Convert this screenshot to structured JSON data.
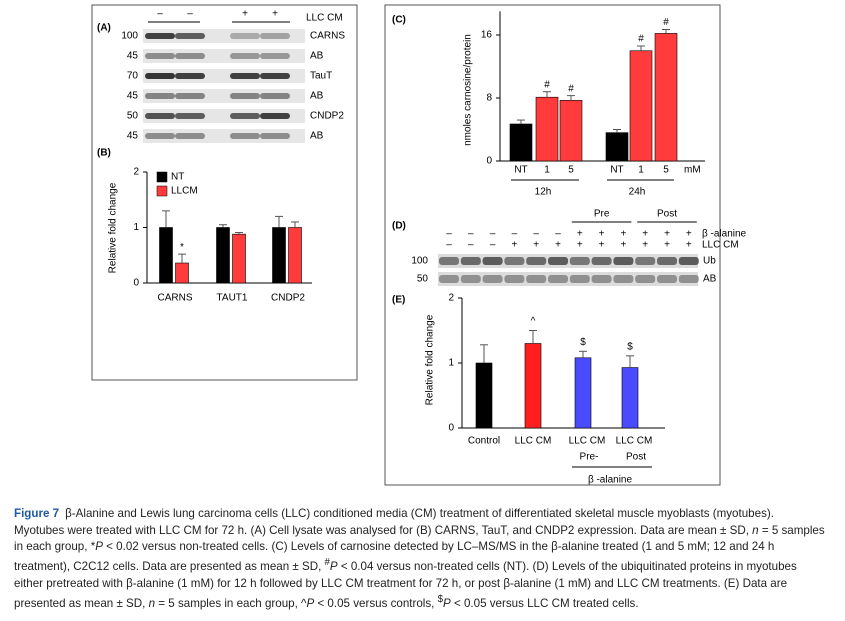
{
  "panel_labels": [
    "(A)",
    "(B)",
    "(C)",
    "(D)",
    "(E)"
  ],
  "blot_a": {
    "treatment": "LLC CM",
    "lanes": [
      "–",
      "–",
      "+",
      "+"
    ],
    "rows": [
      {
        "mw": 100,
        "label": "CARNS"
      },
      {
        "mw": 45,
        "label": "AB"
      },
      {
        "mw": 70,
        "label": "TauT"
      },
      {
        "mw": 45,
        "label": "AB"
      },
      {
        "mw": 50,
        "label": "CNDP2"
      },
      {
        "mw": 45,
        "label": "AB"
      }
    ]
  },
  "blot_d": {
    "groups": [
      "Pre",
      "Post"
    ],
    "treatments": [
      {
        "name": "β -alanine",
        "lanes": [
          "–",
          "–",
          "–",
          "–",
          "–",
          "–",
          "+",
          "+",
          "+",
          "+",
          "+",
          "+"
        ]
      },
      {
        "name": "LLC CM",
        "lanes": [
          "–",
          "–",
          "–",
          "+",
          "+",
          "+",
          "+",
          "+",
          "+",
          "+",
          "+",
          "+"
        ]
      }
    ],
    "rows": [
      {
        "mw": 100,
        "label": "Ub"
      },
      {
        "mw": 50,
        "label": "AB"
      }
    ]
  },
  "chart_data": [
    {
      "type": "bar",
      "y_label": "Relative fold change",
      "categories": [
        "CARNS",
        "TAUT1",
        "CNDP2"
      ],
      "series": [
        {
          "name": "NT",
          "color": "#000000",
          "values": [
            1,
            1,
            1
          ],
          "errors": [
            0.3,
            0.05,
            0.2
          ]
        },
        {
          "name": "LLCM",
          "color": "#ff3b3b",
          "values": [
            0.36,
            0.88,
            1.0
          ],
          "errors": [
            0.16,
            0.03,
            0.1
          ],
          "significance": [
            "*",
            null,
            null
          ]
        }
      ],
      "ylim": [
        0,
        2
      ],
      "yticks": [
        0,
        1,
        2
      ],
      "legend": "top-left"
    },
    {
      "type": "bar",
      "y_label": "nmoles carnosine/protein",
      "categories": [
        "NT",
        "1",
        "5",
        "NT",
        "1",
        "5"
      ],
      "values": [
        4.7,
        8.1,
        7.7,
        3.6,
        14.0,
        16.2
      ],
      "errors": [
        0.5,
        0.7,
        0.6,
        0.4,
        0.6,
        0.5
      ],
      "colors": [
        "#000000",
        "#ff3b3b",
        "#ff3b3b",
        "#000000",
        "#ff3b3b",
        "#ff3b3b"
      ],
      "significance": [
        null,
        "#",
        "#",
        null,
        "#",
        "#"
      ],
      "groups": [
        "12h",
        "24h"
      ],
      "unit": "mM",
      "ylim": [
        0,
        19
      ],
      "yticks": [
        0,
        8,
        16
      ]
    },
    {
      "type": "bar",
      "y_label": "Relative fold change",
      "categories": [
        "Control",
        "LLC CM",
        "LLC CM",
        "LLC CM"
      ],
      "sublabels": [
        null,
        null,
        "Pre-",
        "Post"
      ],
      "group_label": "β -alanine",
      "values": [
        1.0,
        1.3,
        1.08,
        0.93
      ],
      "errors": [
        0.28,
        0.2,
        0.1,
        0.18
      ],
      "colors": [
        "#000000",
        "#ff1f1f",
        "#4a4aff",
        "#4a4aff"
      ],
      "significance": [
        null,
        "^",
        "$",
        "$"
      ],
      "ylim": [
        0,
        2
      ],
      "yticks": [
        0,
        1,
        2
      ]
    }
  ],
  "caption": {
    "label": "Figure 7",
    "segments": [
      {
        "text": "β-Alanine and Lewis lung carcinoma cells (LLC) conditioned media (CM) treatment of differentiated skeletal muscle myoblasts (myotubes). Myotubes were treated with LLC CM for 72 h. (A) Cell lysate was analysed for (B) CARNS, TauT, and CNDP2 expression. Data are mean ± SD, "
      },
      {
        "text": "n",
        "italic": true
      },
      {
        "text": " = 5 samples in each group, *"
      },
      {
        "text": "P",
        "italic": true
      },
      {
        "text": " < 0.02 versus non-treated cells. (C) Levels of carnosine detected by LC–MS/MS in the β-alanine treated (1 and 5 mM; 12 and 24 h treatment), C2C12 cells. Data are presented as mean ± SD, "
      },
      {
        "text": "#",
        "sup": true
      },
      {
        "text": "P",
        "italic": true
      },
      {
        "text": " < 0.04 versus non-treated cells (NT). (D) Levels of the ubiquitinated proteins in myotubes either pretreated with β-alanine (1 mM) for 12 h followed by LLC CM treatment for 72 h, or post β-alanine (1 mM) and LLC CM treatments. (E) Data are presented as mean ± SD, "
      },
      {
        "text": "n",
        "italic": true
      },
      {
        "text": " = 5 samples in each group, ^"
      },
      {
        "text": "P",
        "italic": true
      },
      {
        "text": " < 0.05 versus controls, "
      },
      {
        "text": "$",
        "sup": true
      },
      {
        "text": "P",
        "italic": true
      },
      {
        "text": " < 0.05 versus LLC CM treated cells."
      }
    ]
  }
}
